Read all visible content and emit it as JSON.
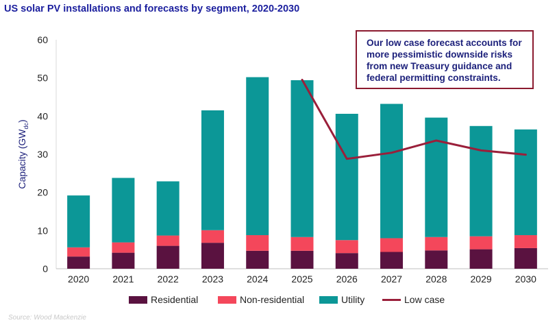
{
  "title": "US solar PV installations and forecasts by segment, 2020-2030",
  "source": "Source: Wood Mackenzie",
  "annotation": "Our low case forecast accounts for more pessimistic downside risks from new Treasury guidance and federal permitting constraints.",
  "colors": {
    "residential": "#5a1240",
    "non_residential": "#f4475b",
    "utility": "#0c9797",
    "low_case": "#9a1f3a",
    "title": "#1b1f9e"
  },
  "chart_data": {
    "type": "bar",
    "stacked": true,
    "categories": [
      "2020",
      "2021",
      "2022",
      "2023",
      "2024",
      "2025",
      "2026",
      "2027",
      "2028",
      "2029",
      "2030"
    ],
    "series": [
      {
        "name": "Residential",
        "values": [
          3.2,
          4.2,
          6.0,
          6.8,
          4.7,
          4.7,
          4.1,
          4.4,
          4.8,
          5.1,
          5.4
        ]
      },
      {
        "name": "Non-residential",
        "values": [
          2.4,
          2.7,
          2.7,
          3.3,
          4.1,
          3.6,
          3.4,
          3.6,
          3.5,
          3.4,
          3.4
        ]
      },
      {
        "name": "Utility",
        "values": [
          13.6,
          16.9,
          14.2,
          31.4,
          41.4,
          41.1,
          33.1,
          35.2,
          31.3,
          28.9,
          27.7
        ]
      }
    ],
    "line_series": {
      "name": "Low case",
      "values": [
        null,
        null,
        null,
        null,
        null,
        49.5,
        28.8,
        30.4,
        33.6,
        31.0,
        29.9
      ]
    },
    "ylabel": "Capacity (GW",
    "ylabel_sub": "dc",
    "ylabel_close": ")",
    "ylim": [
      0,
      60
    ],
    "yticks": [
      "0",
      "10",
      "20",
      "30",
      "40",
      "50",
      "60"
    ],
    "grid": false,
    "legend_position": "bottom"
  }
}
